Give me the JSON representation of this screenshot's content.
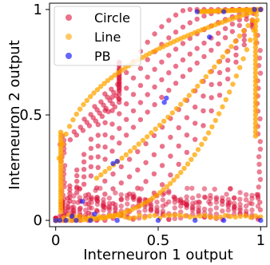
{
  "chart_data": {
    "type": "scatter",
    "xlabel": "Interneuron 1 output",
    "ylabel": "Interneuron 2 output",
    "xlim": [
      -0.03,
      1.03
    ],
    "ylim": [
      -0.03,
      1.03
    ],
    "x_ticks": [
      {
        "value": 0,
        "label": "0"
      },
      {
        "value": 0.5,
        "label": "0.5"
      },
      {
        "value": 1,
        "label": "1"
      }
    ],
    "y_ticks": [
      {
        "value": 0,
        "label": "0"
      },
      {
        "value": 0.5,
        "label": "0.5"
      },
      {
        "value": 1,
        "label": "1"
      }
    ],
    "grid": false,
    "legend_position": "top-left",
    "series": [
      {
        "name": "Circle",
        "color": "#dc143c"
      },
      {
        "name": "Line",
        "color": "#ffa500"
      },
      {
        "name": "PB",
        "color": "#0000ff"
      }
    ],
    "pb_points": [
      [
        0.0,
        0.0
      ],
      [
        0.02,
        0.0
      ],
      [
        0.05,
        0.0
      ],
      [
        0.1,
        0.0
      ],
      [
        0.17,
        0.0
      ],
      [
        0.3,
        0.0
      ],
      [
        0.5,
        0.0
      ],
      [
        0.68,
        0.0
      ],
      [
        0.82,
        0.0
      ],
      [
        1.0,
        0.0
      ],
      [
        0.08,
        0.02
      ],
      [
        0.19,
        0.03
      ],
      [
        0.13,
        0.09
      ],
      [
        0.3,
        0.28
      ],
      [
        0.28,
        0.27
      ],
      [
        0.54,
        0.58
      ],
      [
        0.53,
        0.56
      ],
      [
        0.75,
        0.87
      ],
      [
        0.69,
        0.99
      ],
      [
        0.82,
        0.99
      ],
      [
        0.97,
        1.0
      ],
      [
        1.0,
        1.0
      ]
    ]
  }
}
